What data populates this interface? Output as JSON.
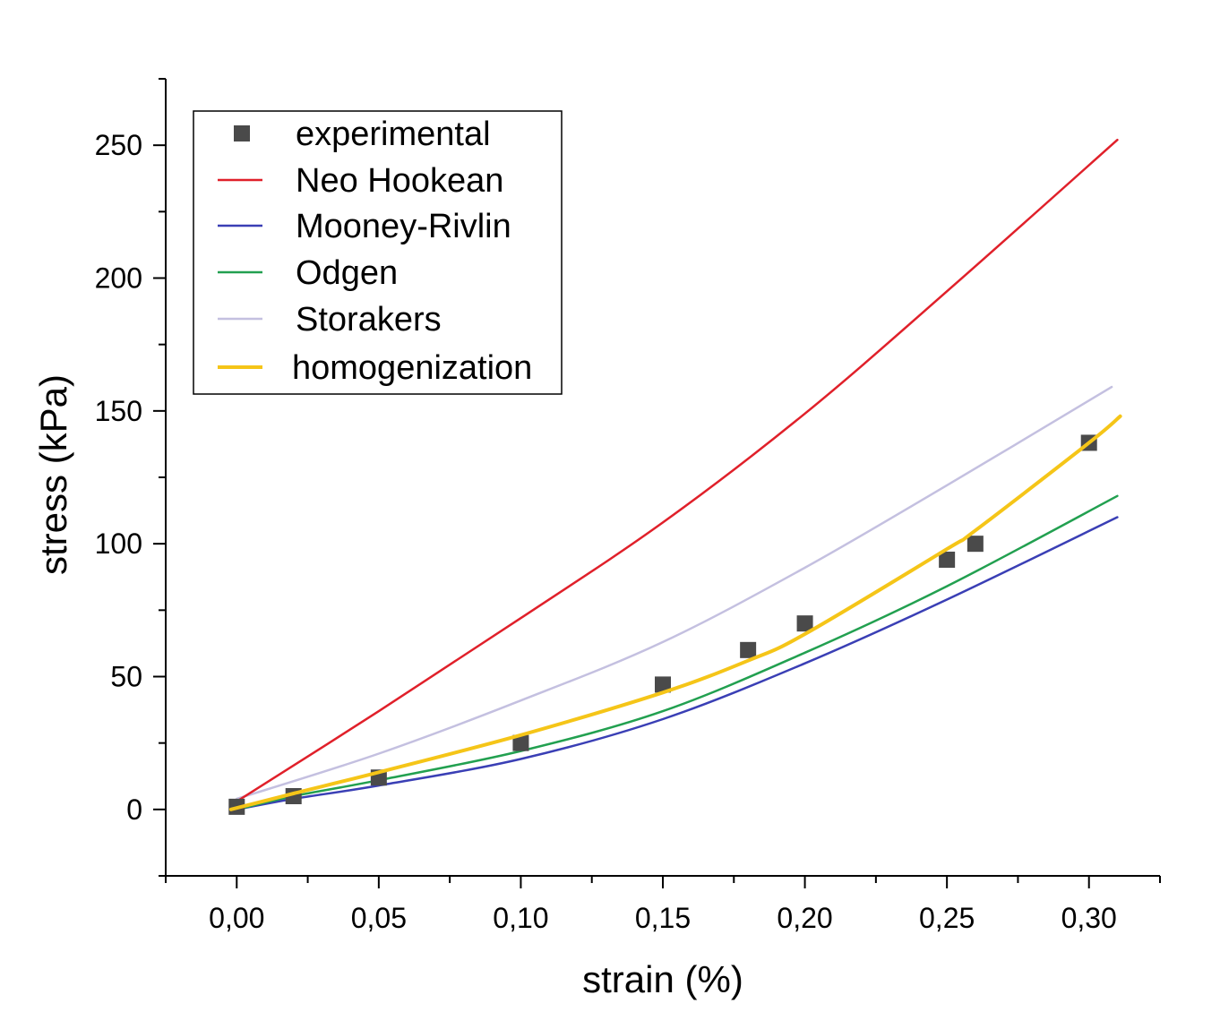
{
  "chart_data": {
    "type": "line",
    "title": "",
    "xlabel": "strain (%)",
    "ylabel": "stress (kPa)",
    "xlim": [
      -0.025,
      0.325
    ],
    "ylim": [
      -25,
      275
    ],
    "x_ticks": [
      0.0,
      0.05,
      0.1,
      0.15,
      0.2,
      0.25,
      0.3
    ],
    "x_tick_labels": [
      "0,00",
      "0,05",
      "0,10",
      "0,15",
      "0,20",
      "0,25",
      "0,30"
    ],
    "y_ticks": [
      0,
      50,
      100,
      150,
      200,
      250
    ],
    "y_tick_labels": [
      "0",
      "50",
      "100",
      "150",
      "200",
      "250"
    ],
    "grid": false,
    "legend_position": "top-left",
    "series": [
      {
        "name": "experimental",
        "kind": "scatter",
        "color": "#4a4a4a",
        "x": [
          0.0,
          0.02,
          0.05,
          0.1,
          0.15,
          0.18,
          0.2,
          0.25,
          0.26,
          0.3
        ],
        "y": [
          1,
          5,
          12,
          25,
          47,
          60,
          70,
          94,
          100,
          138
        ]
      },
      {
        "name": "Neo Hookean",
        "kind": "line",
        "color": "#e0202a",
        "x": [
          0.0,
          0.05,
          0.1,
          0.15,
          0.2,
          0.25,
          0.31
        ],
        "y": [
          3,
          37,
          72,
          108,
          149,
          195,
          252
        ]
      },
      {
        "name": "Mooney-Rivlin",
        "kind": "line",
        "color": "#3a3fb5",
        "x": [
          0.0,
          0.02,
          0.05,
          0.1,
          0.15,
          0.2,
          0.25,
          0.31
        ],
        "y": [
          0,
          4,
          9,
          19,
          34,
          55,
          79,
          110
        ]
      },
      {
        "name": "Odgen",
        "kind": "line",
        "color": "#22a050",
        "x": [
          0.0,
          0.02,
          0.05,
          0.1,
          0.15,
          0.2,
          0.25,
          0.31
        ],
        "y": [
          0,
          5,
          11,
          22,
          37,
          59,
          84,
          118
        ]
      },
      {
        "name": "Storakers",
        "kind": "line",
        "color": "#c4c0e0",
        "x": [
          0.0,
          0.05,
          0.1,
          0.15,
          0.2,
          0.25,
          0.308
        ],
        "y": [
          4,
          21,
          41,
          63,
          91,
          122,
          159
        ]
      },
      {
        "name": "homogenization",
        "kind": "line",
        "color": "#f5c518",
        "x": [
          -0.002,
          0.02,
          0.05,
          0.1,
          0.15,
          0.18,
          0.2,
          0.25,
          0.26,
          0.3,
          0.311
        ],
        "y": [
          0,
          6,
          14,
          28,
          44,
          56,
          66,
          98,
          105,
          138,
          148
        ]
      }
    ]
  }
}
